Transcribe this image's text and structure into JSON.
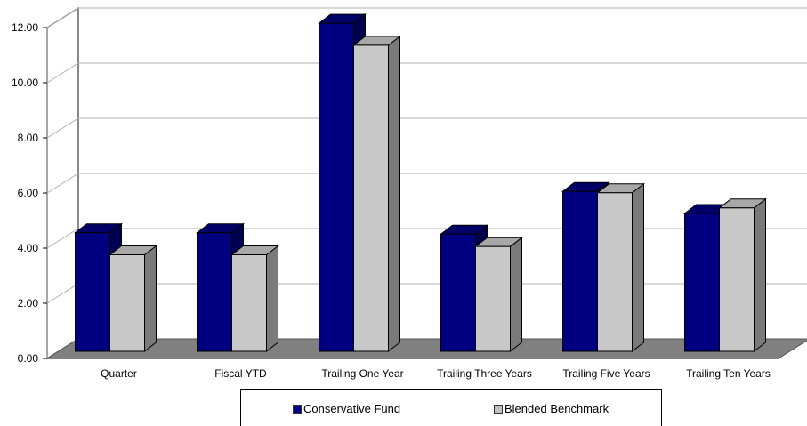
{
  "chart_data": {
    "type": "bar",
    "title": "",
    "xlabel": "",
    "ylabel": "",
    "ylim": [
      0,
      12
    ],
    "yticks": [
      "0.00",
      "2.00",
      "4.00",
      "6.00",
      "8.00",
      "10.00",
      "12.00"
    ],
    "categories": [
      "Quarter",
      "Fiscal YTD",
      "Trailing One Year",
      "Trailing Three Years",
      "Trailing Five Years",
      "Trailing Ten Years"
    ],
    "series": [
      {
        "name": "Conservative Fund",
        "color": "#000080",
        "values": [
          4.3,
          4.3,
          11.9,
          4.25,
          5.8,
          5.0
        ]
      },
      {
        "name": "Blended Benchmark",
        "color": "#c0c0c0",
        "values": [
          3.5,
          3.5,
          11.1,
          3.8,
          5.75,
          5.2
        ]
      }
    ],
    "grid": true,
    "style": "3d",
    "legend_position": "bottom"
  }
}
